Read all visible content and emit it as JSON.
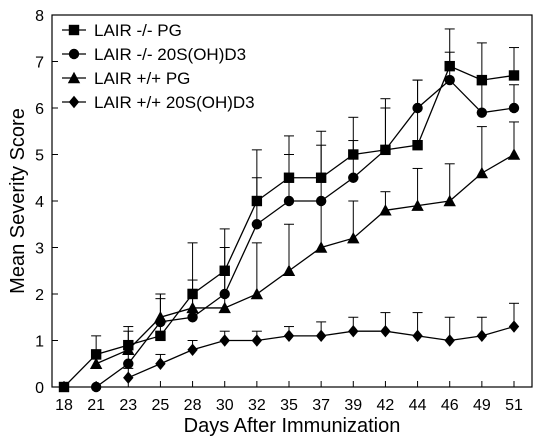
{
  "chart_data": {
    "type": "line",
    "title": "",
    "xlabel": "Days After Immunization",
    "ylabel": "Mean Severity Score",
    "ylim": [
      0,
      8
    ],
    "yticks": [
      0,
      1,
      2,
      3,
      4,
      5,
      6,
      7,
      8
    ],
    "categories": [
      "18",
      "21",
      "23",
      "25",
      "28",
      "30",
      "32",
      "35",
      "37",
      "39",
      "42",
      "44",
      "46",
      "49",
      "51"
    ],
    "grid": false,
    "legend_position": "top-left",
    "series": [
      {
        "name": "LAIR -/- PG",
        "marker": "square",
        "values": [
          0,
          0.7,
          0.9,
          1.1,
          2.0,
          2.5,
          4.0,
          4.5,
          4.5,
          5.0,
          5.1,
          5.2,
          6.9,
          6.6,
          6.7
        ],
        "error_upper": [
          0,
          0.4,
          0.4,
          0.9,
          1.1,
          0.9,
          1.1,
          0.9,
          1.0,
          0.8,
          1.1,
          1.4,
          0.8,
          0.8,
          0.6
        ]
      },
      {
        "name": "LAIR -/- 20S(OH)D3",
        "marker": "circle",
        "values": [
          null,
          0,
          0.5,
          1.4,
          1.5,
          2.0,
          3.5,
          4.0,
          4.0,
          4.5,
          5.1,
          6.0,
          6.6,
          5.9,
          6.0
        ],
        "error_upper": [
          null,
          0,
          0.3,
          0.5,
          0.6,
          1.0,
          1.0,
          1.0,
          1.2,
          0.8,
          0.9,
          0.6,
          0.6,
          0.6,
          0.5
        ]
      },
      {
        "name": "LAIR +/+ PG",
        "marker": "triangle",
        "values": [
          null,
          0.5,
          0.8,
          1.5,
          1.7,
          1.7,
          2.0,
          2.5,
          3.0,
          3.2,
          3.8,
          3.9,
          4.0,
          4.6,
          5.0
        ],
        "error_upper": [
          null,
          0.3,
          0.4,
          0.5,
          0.6,
          0.7,
          1.1,
          1.0,
          1.0,
          0.8,
          0.4,
          0.8,
          0.8,
          1.0,
          0.7
        ]
      },
      {
        "name": "LAIR +/+ 20S(OH)D3",
        "marker": "diamond",
        "values": [
          null,
          null,
          0.2,
          0.5,
          0.8,
          1.0,
          1.0,
          1.1,
          1.1,
          1.2,
          1.2,
          1.1,
          1.0,
          1.1,
          1.3
        ],
        "error_upper": [
          null,
          null,
          0.2,
          0.2,
          0.2,
          0.2,
          0.2,
          0.2,
          0.3,
          0.3,
          0.4,
          0.5,
          0.5,
          0.4,
          0.5
        ]
      }
    ]
  }
}
